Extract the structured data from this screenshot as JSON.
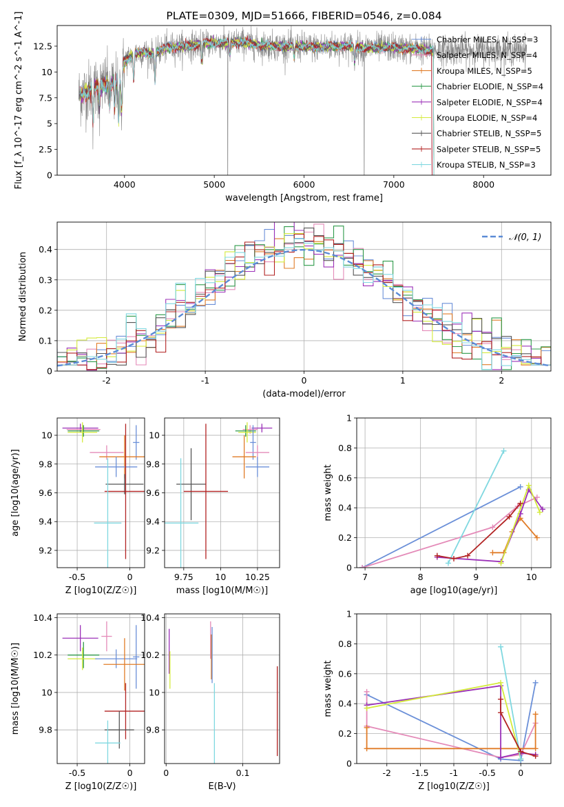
{
  "chart_data": [
    {
      "id": "spectrum",
      "type": "line",
      "title": "PLATE=0309, MJD=51666, FIBERID=0546, z=0.084",
      "xlabel": "wavelength [Angstrom, rest frame]",
      "ylabel": "Flux [f_λ 10^-17 erg cm^-2 s^-1 A^-1]",
      "xlim": [
        3250,
        8750
      ],
      "ylim": [
        0,
        14.5
      ],
      "xticks": [
        4000,
        5000,
        6000,
        7000,
        8000
      ],
      "yticks": [
        0.0,
        2.5,
        5.0,
        7.5,
        10.0,
        12.5
      ],
      "grid": false,
      "legend_placement": "right",
      "series": [
        {
          "name": "Chabrier MILES, N_SSP=3",
          "color": "#6a8fd8"
        },
        {
          "name": "Salpeter MILES, N_SSP=4",
          "color": "#e48ab8"
        },
        {
          "name": "Kroupa MILES, N_SSP=5",
          "color": "#e07b26"
        },
        {
          "name": "Chabrier ELODIE, N_SSP=4",
          "color": "#2e9a4a"
        },
        {
          "name": "Salpeter ELODIE, N_SSP=4",
          "color": "#9b30b8"
        },
        {
          "name": "Kroupa ELODIE, N_SSP=4",
          "color": "#d4ea3a"
        },
        {
          "name": "Chabrier STELIB, N_SSP=5",
          "color": "#555555"
        },
        {
          "name": "Salpeter STELIB, N_SSP=5",
          "color": "#b22222"
        },
        {
          "name": "Kroupa STELIB, N_SSP=3",
          "color": "#7fd8e0"
        }
      ],
      "data_color": "#888888",
      "continuum": [
        [
          3520,
          7.8
        ],
        [
          3600,
          8.2
        ],
        [
          3700,
          8.6
        ],
        [
          3800,
          8.8
        ],
        [
          3900,
          9.2
        ],
        [
          3950,
          9.0
        ],
        [
          4000,
          11.0
        ],
        [
          4100,
          11.8
        ],
        [
          4200,
          11.9
        ],
        [
          4300,
          11.7
        ],
        [
          4400,
          12.1
        ],
        [
          4500,
          12.4
        ],
        [
          4700,
          12.5
        ],
        [
          4900,
          12.8
        ],
        [
          5100,
          12.8
        ],
        [
          5300,
          12.9
        ],
        [
          5500,
          12.6
        ],
        [
          5700,
          12.5
        ],
        [
          5900,
          12.5
        ],
        [
          6100,
          12.4
        ],
        [
          6300,
          12.5
        ],
        [
          6500,
          12.5
        ],
        [
          6700,
          12.3
        ],
        [
          6900,
          12.4
        ],
        [
          7100,
          12.3
        ],
        [
          7300,
          12.2
        ],
        [
          7420,
          12.1
        ]
      ],
      "data_extent": [
        3490,
        8480
      ]
    },
    {
      "id": "residuals",
      "type": "line",
      "xlabel": "(data-model)/error",
      "ylabel": "Normed distribution",
      "xlim": [
        -2.5,
        2.5
      ],
      "ylim": [
        0,
        0.49
      ],
      "xticks": [
        -2,
        -1,
        0,
        1,
        2
      ],
      "yticks": [
        0.0,
        0.1,
        0.2,
        0.3,
        0.4
      ],
      "grid": true,
      "legend_placement": "top-right",
      "reference": {
        "name": "𝒩(0, 1)",
        "mean": 0,
        "sigma": 1,
        "color": "#5b8bd6"
      },
      "bin_width": 0.1
    },
    {
      "id": "age_vs_Z",
      "type": "scatter",
      "xlabel": "Z [log10(Z/Z☉)]",
      "ylabel": "age [log10(age/yr)]",
      "xlim": [
        -0.69,
        0.14
      ],
      "ylim": [
        9.08,
        10.12
      ],
      "xticks": [
        -0.5,
        0.0
      ],
      "yticks": [
        9.2,
        9.4,
        9.6,
        9.8,
        10.0
      ],
      "points": [
        {
          "series": 4,
          "x": -0.47,
          "y": 10.05,
          "xerr": 0.17,
          "yerr": 0.03
        },
        {
          "series": 1,
          "x": -0.44,
          "y": 10.04,
          "xerr": 0.16,
          "yerr": 0.03
        },
        {
          "series": 3,
          "x": -0.44,
          "y": 10.03,
          "xerr": 0.15,
          "yerr": 0.04
        },
        {
          "series": 5,
          "x": -0.45,
          "y": 10.02,
          "xerr": 0.14,
          "yerr": 0.07
        },
        {
          "series": 0,
          "x": 0.06,
          "y": 9.95,
          "xerr": 0.03,
          "yerr": 0.12
        },
        {
          "series": 1,
          "x": -0.22,
          "y": 9.88,
          "xerr": 0.16,
          "yerr": 0.05
        },
        {
          "series": 2,
          "x": -0.05,
          "y": 9.85,
          "xerr": 0.24,
          "yerr": 0.15
        },
        {
          "series": 0,
          "x": -0.13,
          "y": 9.78,
          "xerr": 0.2,
          "yerr": 0.07
        },
        {
          "series": 6,
          "x": -0.05,
          "y": 9.66,
          "xerr": 0.18,
          "yerr": 0.07
        },
        {
          "series": 7,
          "x": -0.04,
          "y": 9.61,
          "xerr": 0.2,
          "yerr": 0.47
        },
        {
          "series": 8,
          "x": -0.21,
          "y": 9.39,
          "xerr": 0.13,
          "yerr": 0.45
        }
      ]
    },
    {
      "id": "age_vs_mass",
      "type": "scatter",
      "xlabel": "mass [log10(M/M☉)]",
      "ylabel": "",
      "xlim": [
        9.62,
        10.4
      ],
      "ylim": [
        9.08,
        10.12
      ],
      "xticks": [
        9.75,
        10.0,
        10.25
      ],
      "yticks": [
        9.2,
        9.4,
        9.6,
        9.8,
        10.0
      ],
      "points": [
        {
          "series": 4,
          "x": 10.28,
          "y": 10.05,
          "xerr": 0.07,
          "yerr": 0.03
        },
        {
          "series": 1,
          "x": 10.2,
          "y": 10.04,
          "xerr": 0.05,
          "yerr": 0.03
        },
        {
          "series": 3,
          "x": 10.17,
          "y": 10.03,
          "xerr": 0.07,
          "yerr": 0.04
        },
        {
          "series": 5,
          "x": 10.18,
          "y": 10.02,
          "xerr": 0.06,
          "yerr": 0.07
        },
        {
          "series": 0,
          "x": 10.22,
          "y": 9.95,
          "xerr": 0.02,
          "yerr": 0.12
        },
        {
          "series": 1,
          "x": 10.25,
          "y": 9.88,
          "xerr": 0.08,
          "yerr": 0.05
        },
        {
          "series": 2,
          "x": 10.16,
          "y": 9.85,
          "xerr": 0.08,
          "yerr": 0.15
        },
        {
          "series": 0,
          "x": 10.25,
          "y": 9.78,
          "xerr": 0.08,
          "yerr": 0.07
        },
        {
          "series": 6,
          "x": 9.8,
          "y": 9.66,
          "xerr": 0.1,
          "yerr": 0.25
        },
        {
          "series": 7,
          "x": 9.9,
          "y": 9.61,
          "xerr": 0.15,
          "yerr": 0.47
        },
        {
          "series": 8,
          "x": 9.73,
          "y": 9.39,
          "xerr": 0.12,
          "yerr": 0.45
        }
      ]
    },
    {
      "id": "mass_weight_vs_age",
      "type": "line",
      "xlabel": "age [log10(age/yr)]",
      "ylabel": "mass weight",
      "xlim": [
        6.85,
        10.35
      ],
      "ylim": [
        0,
        1.0
      ],
      "xticks": [
        7,
        8,
        9,
        10
      ],
      "yticks": [
        0.0,
        0.2,
        0.4,
        0.6,
        0.8,
        1.0
      ],
      "grid": true,
      "series": [
        {
          "series": 0,
          "points": [
            [
              6.95,
              0.0
            ],
            [
              9.8,
              0.54
            ]
          ]
        },
        {
          "series": 1,
          "points": [
            [
              6.95,
              0.0
            ],
            [
              9.3,
              0.27
            ],
            [
              9.75,
              0.41
            ],
            [
              10.1,
              0.47
            ]
          ]
        },
        {
          "series": 2,
          "points": [
            [
              9.3,
              0.1
            ],
            [
              9.5,
              0.1
            ],
            [
              9.65,
              0.24
            ],
            [
              9.8,
              0.33
            ],
            [
              10.1,
              0.2
            ]
          ]
        },
        {
          "series": 4,
          "points": [
            [
              8.3,
              0.07
            ],
            [
              9.45,
              0.04
            ],
            [
              9.8,
              0.36
            ],
            [
              9.95,
              0.52
            ],
            [
              10.2,
              0.39
            ]
          ]
        },
        {
          "series": 5,
          "points": [
            [
              9.45,
              0.03
            ],
            [
              9.95,
              0.55
            ],
            [
              10.15,
              0.37
            ]
          ]
        },
        {
          "series": 8,
          "points": [
            [
              8.5,
              0.03
            ],
            [
              9.5,
              0.78
            ]
          ]
        },
        {
          "series": 7,
          "points": [
            [
              8.3,
              0.08
            ],
            [
              8.6,
              0.06
            ],
            [
              8.85,
              0.08
            ],
            [
              9.6,
              0.34
            ],
            [
              9.8,
              0.43
            ]
          ]
        }
      ]
    },
    {
      "id": "mass_vs_Z",
      "type": "scatter",
      "xlabel": "Z [log10(Z/Z☉)]",
      "ylabel": "mass [log10(M/M☉)]",
      "xlim": [
        -0.69,
        0.14
      ],
      "ylim": [
        9.62,
        10.42
      ],
      "xticks": [
        -0.5,
        0.0
      ],
      "yticks": [
        9.8,
        10.0,
        10.2,
        10.4
      ],
      "points": [
        {
          "series": 4,
          "x": -0.47,
          "y": 10.29,
          "xerr": 0.17,
          "yerr": 0.07
        },
        {
          "series": 1,
          "x": -0.22,
          "y": 10.3,
          "xerr": 0.05,
          "yerr": 0.08
        },
        {
          "series": 3,
          "x": -0.44,
          "y": 10.2,
          "xerr": 0.15,
          "yerr": 0.07
        },
        {
          "series": 5,
          "x": -0.45,
          "y": 10.18,
          "xerr": 0.14,
          "yerr": 0.06
        },
        {
          "series": 0,
          "x": 0.06,
          "y": 10.19,
          "xerr": 0.03,
          "yerr": 0.17
        },
        {
          "series": 0,
          "x": -0.13,
          "y": 10.18,
          "xerr": 0.2,
          "yerr": 0.05
        },
        {
          "series": 2,
          "x": -0.05,
          "y": 10.15,
          "xerr": 0.2,
          "yerr": 0.14
        },
        {
          "series": 7,
          "x": -0.04,
          "y": 9.9,
          "xerr": 0.2,
          "yerr": 0.15
        },
        {
          "series": 6,
          "x": -0.1,
          "y": 9.8,
          "xerr": 0.14,
          "yerr": 0.1
        },
        {
          "series": 8,
          "x": -0.21,
          "y": 9.73,
          "xerr": 0.12,
          "yerr": 0.12
        }
      ]
    },
    {
      "id": "mass_vs_ebv",
      "type": "scatter",
      "xlabel": "E(B-V)",
      "ylabel": "",
      "xlim": [
        -0.002,
        0.148
      ],
      "ylim": [
        9.62,
        10.42
      ],
      "xticks": [
        0.0,
        0.1
      ],
      "yticks": [
        9.8,
        10.0,
        10.2,
        10.4
      ],
      "points": [
        {
          "series": 4,
          "x": 0.004,
          "y": 10.22,
          "yerr": 0.12
        },
        {
          "series": 5,
          "x": 0.005,
          "y": 10.12,
          "yerr": 0.1
        },
        {
          "series": 1,
          "x": 0.058,
          "y": 10.28,
          "yerr": 0.1
        },
        {
          "series": 2,
          "x": 0.059,
          "y": 10.19,
          "yerr": 0.12
        },
        {
          "series": 0,
          "x": 0.06,
          "y": 10.2,
          "yerr": 0.15
        },
        {
          "series": 8,
          "x": 0.063,
          "y": 9.81,
          "yerr": 0.24
        },
        {
          "series": 7,
          "x": 0.145,
          "y": 9.9,
          "yerr": 0.24
        }
      ]
    },
    {
      "id": "mass_weight_vs_Z",
      "type": "line",
      "xlabel": "Z [log10(Z/Z☉)]",
      "ylabel": "mass weight",
      "xlim": [
        -2.45,
        0.45
      ],
      "ylim": [
        0,
        1.0
      ],
      "xticks": [
        -2.0,
        -1.5,
        -1.0,
        -0.5,
        0.0
      ],
      "yticks": [
        0.0,
        0.2,
        0.4,
        0.6,
        0.8,
        1.0
      ],
      "grid": true,
      "series": [
        {
          "series": 0,
          "points": [
            [
              -2.3,
              0.46
            ],
            [
              -0.3,
              0.03
            ],
            [
              0.0,
              0.02
            ],
            [
              0.22,
              0.54
            ]
          ]
        },
        {
          "series": 1,
          "points": [
            [
              -2.3,
              0.48
            ],
            [
              -2.3,
              0.25
            ],
            [
              -0.3,
              0.04
            ],
            [
              0.0,
              0.06
            ],
            [
              0.22,
              0.27
            ]
          ]
        },
        {
          "series": 2,
          "points": [
            [
              -2.3,
              0.24
            ],
            [
              -2.3,
              0.1
            ],
            [
              -0.3,
              0.1
            ],
            [
              0.22,
              0.1
            ],
            [
              0.22,
              0.33
            ]
          ]
        },
        {
          "series": 4,
          "points": [
            [
              -2.3,
              0.39
            ],
            [
              -0.3,
              0.52
            ],
            [
              -0.3,
              0.04
            ],
            [
              0.0,
              0.07
            ],
            [
              0.22,
              0.06
            ]
          ]
        },
        {
          "series": 5,
          "points": [
            [
              -2.3,
              0.37
            ],
            [
              -0.3,
              0.54
            ],
            [
              0.0,
              0.03
            ]
          ]
        },
        {
          "series": 8,
          "points": [
            [
              -0.3,
              0.78
            ],
            [
              0.0,
              0.03
            ]
          ]
        },
        {
          "series": 7,
          "points": [
            [
              -0.3,
              0.43
            ],
            [
              -0.3,
              0.34
            ],
            [
              0.0,
              0.08
            ],
            [
              0.22,
              0.05
            ]
          ]
        }
      ]
    }
  ]
}
